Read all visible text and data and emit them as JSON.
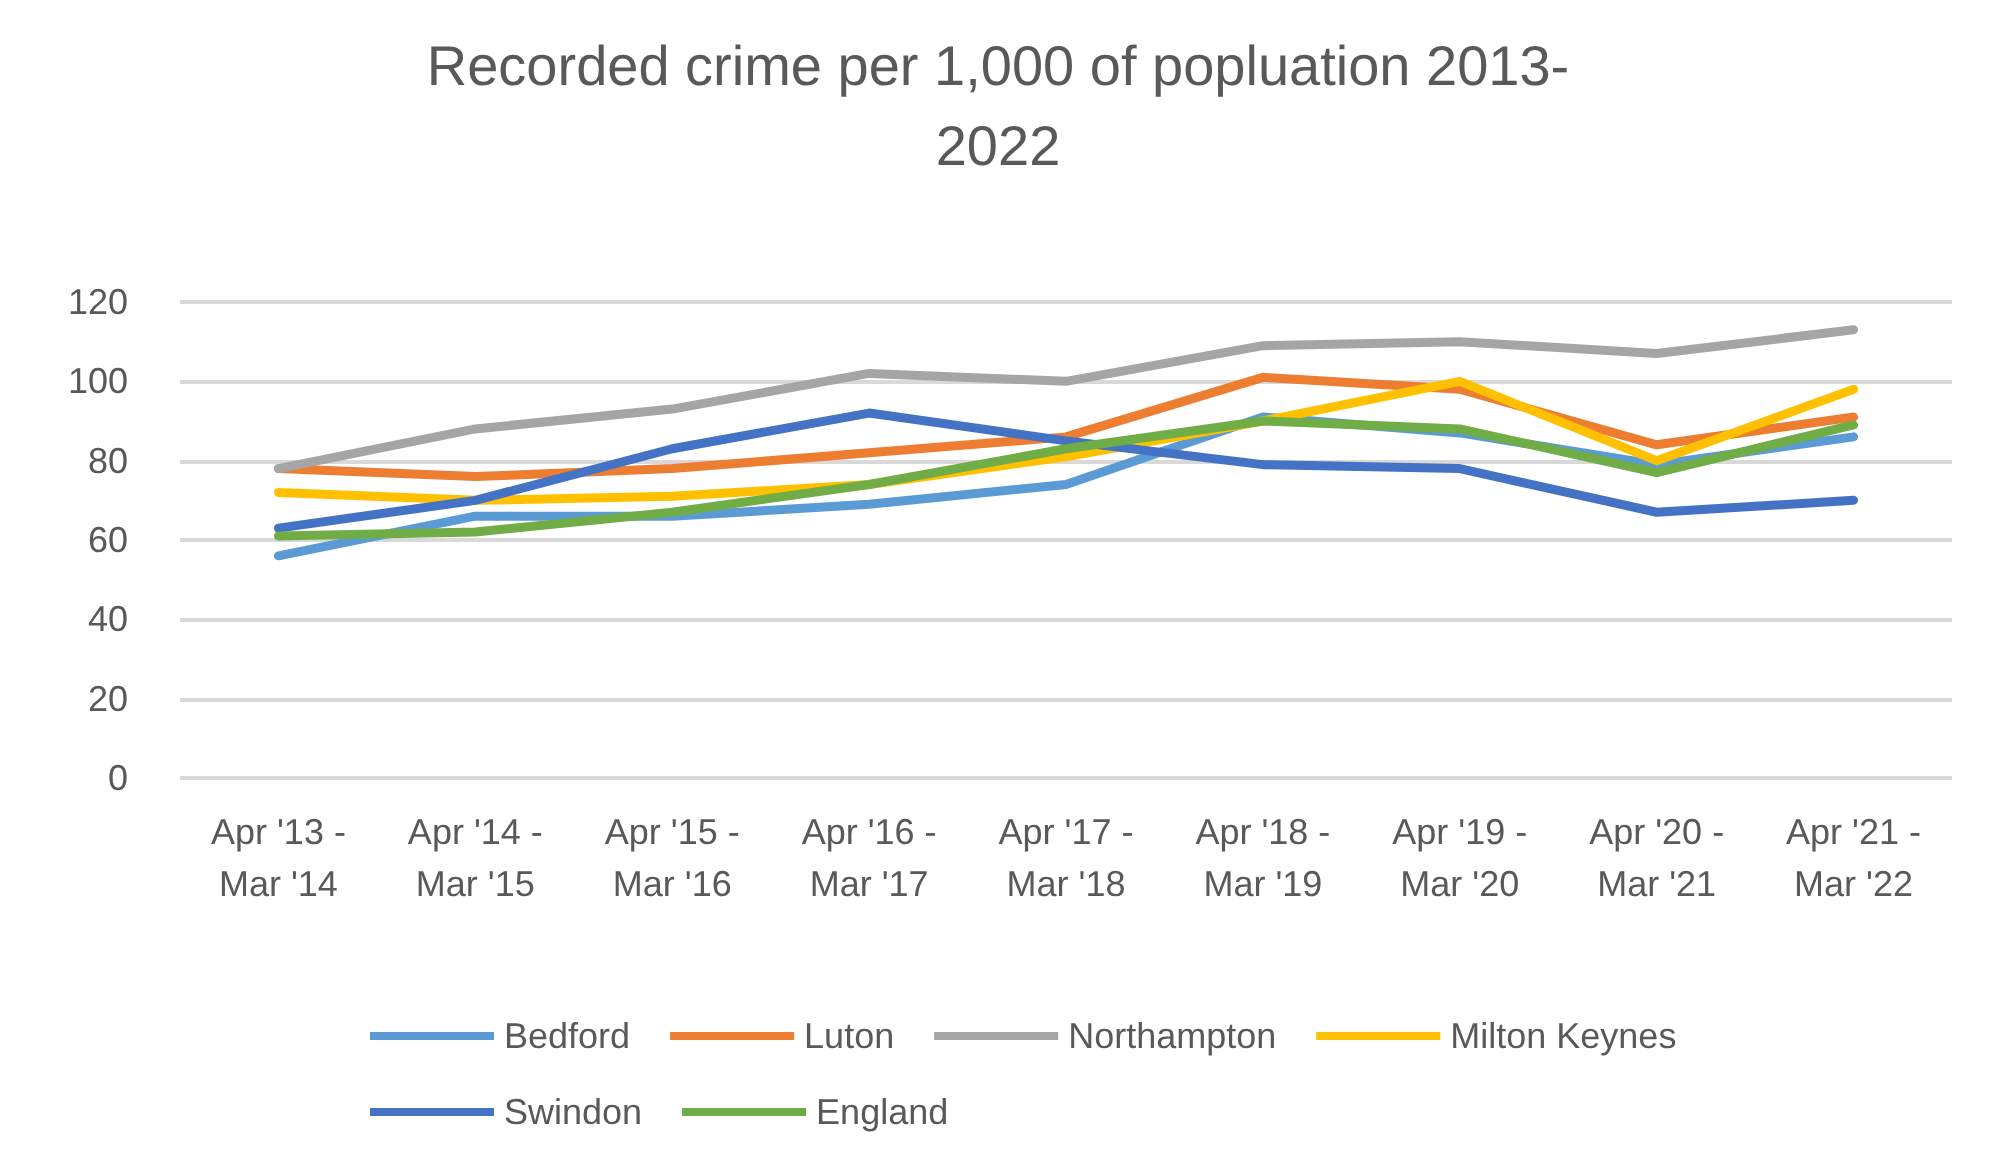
{
  "chart_data": {
    "type": "line",
    "title": "Recorded crime per 1,000 of popluation 2013-\n2022",
    "categories": [
      "Apr '13 -\nMar '14",
      "Apr '14 -\nMar '15",
      "Apr '15 -\nMar '16",
      "Apr '16 -\nMar '17",
      "Apr '17 -\nMar '18",
      "Apr '18 -\nMar '19",
      "Apr '19 -\nMar '20",
      "Apr '20 -\nMar '21",
      "Apr '21 -\nMar '22"
    ],
    "series": [
      {
        "name": "Bedford",
        "color": "#5b9bd5",
        "values": [
          56,
          66,
          66,
          69,
          74,
          91,
          87,
          79,
          86
        ]
      },
      {
        "name": "Luton",
        "color": "#ed7d31",
        "values": [
          78,
          76,
          78,
          82,
          86,
          101,
          98,
          84,
          91
        ]
      },
      {
        "name": "Northampton",
        "color": "#a5a5a5",
        "values": [
          78,
          88,
          93,
          102,
          100,
          109,
          110,
          107,
          113
        ]
      },
      {
        "name": "Milton Keynes",
        "color": "#ffc000",
        "values": [
          72,
          70,
          71,
          74,
          81,
          90,
          100,
          80,
          98
        ]
      },
      {
        "name": "Swindon",
        "color": "#4472c4",
        "values": [
          63,
          70,
          83,
          92,
          85,
          79,
          78,
          67,
          70
        ]
      },
      {
        "name": "England",
        "color": "#70ad47",
        "values": [
          61,
          62,
          67,
          74,
          83,
          90,
          88,
          77,
          89
        ]
      }
    ],
    "ylim": [
      0,
      120
    ],
    "yticks": [
      0,
      20,
      40,
      60,
      80,
      100,
      120
    ],
    "grid": "y",
    "legend": "bottom",
    "marker": "none",
    "line_style": "solid"
  }
}
